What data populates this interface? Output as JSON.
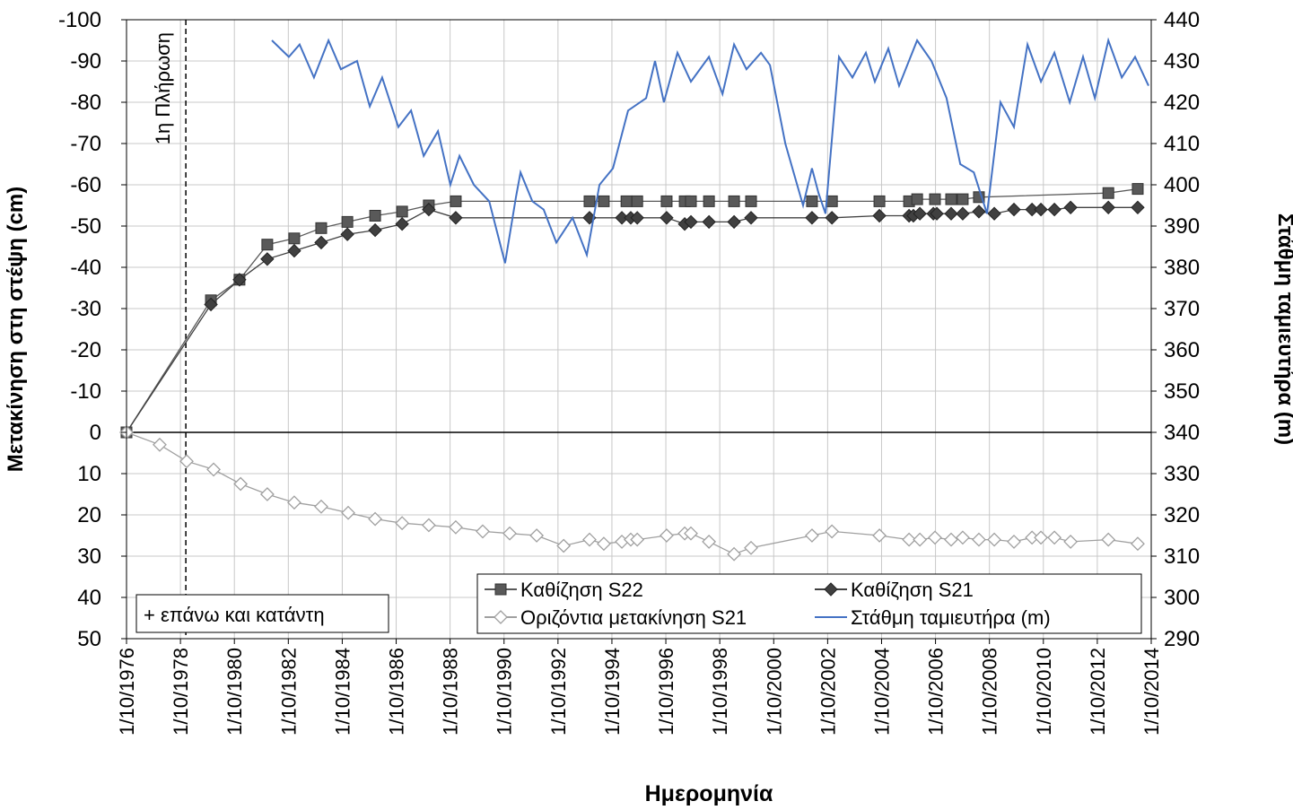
{
  "chart_data": {
    "type": "line",
    "x_label": "Ημερομηνία",
    "y_label": "Μετακίνηση στη στέψη (cm)",
    "y2_label": "Στάθμη ταμιευτήρα (m)",
    "xlim": [
      1976.75,
      2014.75
    ],
    "xticks": [
      {
        "value": 1976.75,
        "label": "1/10/1976"
      },
      {
        "value": 1978.75,
        "label": "1/10/1978"
      },
      {
        "value": 1980.75,
        "label": "1/10/1980"
      },
      {
        "value": 1982.75,
        "label": "1/10/1982"
      },
      {
        "value": 1984.75,
        "label": "1/10/1984"
      },
      {
        "value": 1986.75,
        "label": "1/10/1986"
      },
      {
        "value": 1988.75,
        "label": "1/10/1988"
      },
      {
        "value": 1990.75,
        "label": "1/10/1990"
      },
      {
        "value": 1992.75,
        "label": "1/10/1992"
      },
      {
        "value": 1994.75,
        "label": "1/10/1994"
      },
      {
        "value": 1996.75,
        "label": "1/10/1996"
      },
      {
        "value": 1998.75,
        "label": "1/10/1998"
      },
      {
        "value": 2000.75,
        "label": "1/10/2000"
      },
      {
        "value": 2002.75,
        "label": "1/10/2002"
      },
      {
        "value": 2004.75,
        "label": "1/10/2004"
      },
      {
        "value": 2006.75,
        "label": "1/10/2006"
      },
      {
        "value": 2008.75,
        "label": "1/10/2008"
      },
      {
        "value": 2010.75,
        "label": "1/10/2010"
      },
      {
        "value": 2012.75,
        "label": "1/10/2012"
      },
      {
        "value": 2014.75,
        "label": "1/10/2014"
      }
    ],
    "ylim": [
      -100,
      50
    ],
    "y_inverted": true,
    "yticks": [
      -100,
      -90,
      -80,
      -70,
      -60,
      -50,
      -40,
      -30,
      -20,
      -10,
      0,
      10,
      20,
      30,
      40,
      50
    ],
    "y2lim": [
      290,
      440
    ],
    "y2ticks": [
      290,
      300,
      310,
      320,
      330,
      340,
      350,
      360,
      370,
      380,
      390,
      400,
      410,
      420,
      430,
      440
    ],
    "grid": true,
    "legend_position": "lower right",
    "annotations": [
      {
        "text": "1η Πλήρωση",
        "x": 1978.95,
        "style": "dashed-vline"
      },
      {
        "text": "+ επάνω και κατάντη",
        "style": "box"
      }
    ],
    "series": [
      {
        "name": "Καθίζηση S22",
        "color": "#595959",
        "marker": "square",
        "x": [
          1976.75,
          1979.88,
          1980.94,
          1981.97,
          1982.97,
          1983.97,
          1984.94,
          1985.97,
          1986.97,
          1987.96,
          1988.96,
          1993.92,
          1994.45,
          1995.29,
          1995.69,
          1996.78,
          1997.45,
          1997.68,
          1998.35,
          1999.28,
          1999.91,
          2002.17,
          2002.91,
          2004.67,
          2005.77,
          2006.07,
          2006.73,
          2007.33,
          2007.76,
          2008.36,
          2013.16,
          2014.25
        ],
        "values": [
          0,
          -32,
          -37,
          -45.5,
          -47,
          -49.5,
          -51,
          -52.5,
          -53.5,
          -55,
          -56,
          -56,
          -56,
          -56,
          -56,
          -56,
          -56,
          -56,
          -56,
          -56,
          -56,
          -56,
          -56,
          -56,
          -56,
          -56.5,
          -56.5,
          -56.5,
          -56.5,
          -57,
          -58,
          -59
        ]
      },
      {
        "name": "Καθίζηση S21",
        "color": "#404040",
        "marker": "diamond",
        "x": [
          1976.75,
          1979.88,
          1980.94,
          1981.97,
          1982.97,
          1983.97,
          1984.94,
          1985.97,
          1986.97,
          1987.96,
          1988.96,
          1993.92,
          1995.12,
          1995.45,
          1995.69,
          1996.78,
          1997.45,
          1997.68,
          1998.35,
          1999.28,
          1999.91,
          2002.17,
          2002.91,
          2004.67,
          2005.77,
          2005.93,
          2006.17,
          2006.67,
          2006.8,
          2007.33,
          2007.76,
          2008.36,
          2008.93,
          2009.66,
          2010.33,
          2010.66,
          2011.16,
          2011.76,
          2013.16,
          2014.25
        ],
        "values": [
          0,
          -31,
          -37,
          -42,
          -44,
          -46,
          -48,
          -49,
          -50.5,
          -54,
          -52,
          -52,
          -52,
          -52,
          -52,
          -52,
          -50.5,
          -51,
          -51,
          -51,
          -52,
          -52,
          -52,
          -52.5,
          -52.5,
          -52.5,
          -53,
          -53,
          -53,
          -53,
          -53,
          -53.5,
          -53,
          -54,
          -54,
          -54,
          -54,
          -54.5,
          -54.5,
          -54.5
        ]
      },
      {
        "name": "Οριζόντια μετακίνηση S21",
        "color": "#a0a0a0",
        "marker": "open-diamond",
        "x": [
          1976.75,
          1977.98,
          1978.98,
          1979.98,
          1980.98,
          1981.97,
          1982.97,
          1983.97,
          1984.97,
          1985.97,
          1986.97,
          1987.96,
          1988.96,
          1989.96,
          1990.96,
          1991.96,
          1992.96,
          1993.92,
          1994.45,
          1995.12,
          1995.45,
          1995.69,
          1996.78,
          1997.45,
          1997.68,
          1998.35,
          1999.28,
          1999.91,
          2002.17,
          2002.91,
          2004.67,
          2005.77,
          2006.17,
          2006.73,
          2007.33,
          2007.76,
          2008.36,
          2008.93,
          2009.66,
          2010.33,
          2010.66,
          2011.16,
          2011.76,
          2013.16,
          2014.25
        ],
        "values": [
          0,
          3,
          7,
          9,
          12.5,
          15,
          17,
          18,
          19.5,
          21,
          22,
          22.5,
          23,
          24,
          24.5,
          25,
          27.5,
          26,
          27,
          26.5,
          26,
          26,
          25,
          24.5,
          24.5,
          26.5,
          29.5,
          28,
          25,
          24,
          25,
          26,
          26,
          25.5,
          26,
          25.5,
          26,
          26,
          26.5,
          25.5,
          25.5,
          25.5,
          26.5,
          26,
          27
        ]
      },
      {
        "name": "Στάθμη ταμιευτήρα (m)",
        "color": "#4472c4",
        "marker": "none",
        "axis": "y2",
        "x": [
          1982.14,
          1982.77,
          1983.17,
          1983.7,
          1984.24,
          1984.7,
          1985.3,
          1985.77,
          1986.23,
          1986.83,
          1987.3,
          1987.77,
          1988.3,
          1988.76,
          1989.1,
          1989.63,
          1990.2,
          1990.79,
          1991.19,
          1991.36,
          1991.8,
          1992.22,
          1992.69,
          1993.29,
          1993.82,
          1994.29,
          1994.79,
          1995.35,
          1996.02,
          1996.35,
          1996.68,
          1997.18,
          1997.68,
          1998.35,
          1998.85,
          1999.28,
          1999.74,
          2000.28,
          2000.61,
          2001.18,
          2001.84,
          2002.17,
          2002.41,
          2002.67,
          2003.17,
          2003.67,
          2004.17,
          2004.5,
          2005.0,
          2005.4,
          2006.07,
          2006.6,
          2007.16,
          2007.67,
          2008.17,
          2008.66,
          2009.16,
          2009.66,
          2010.16,
          2010.66,
          2011.16,
          2011.73,
          2012.22,
          2012.66,
          2013.16,
          2013.66,
          2014.15,
          2014.65
        ],
        "values": [
          435,
          431,
          434,
          426,
          435,
          428,
          430,
          419,
          426,
          414,
          418,
          407,
          413,
          400,
          407,
          400,
          396,
          381,
          397,
          403,
          396,
          394,
          386,
          392,
          383,
          400,
          404,
          418,
          421,
          430,
          420,
          432,
          425,
          431,
          422,
          434,
          428,
          432,
          429,
          410,
          395,
          404,
          398,
          393,
          431,
          426,
          432,
          425,
          433,
          424,
          435,
          430,
          421,
          405,
          403,
          393,
          420,
          414,
          434,
          425,
          432,
          420,
          431,
          421,
          435,
          426,
          431,
          424
        ]
      }
    ]
  }
}
